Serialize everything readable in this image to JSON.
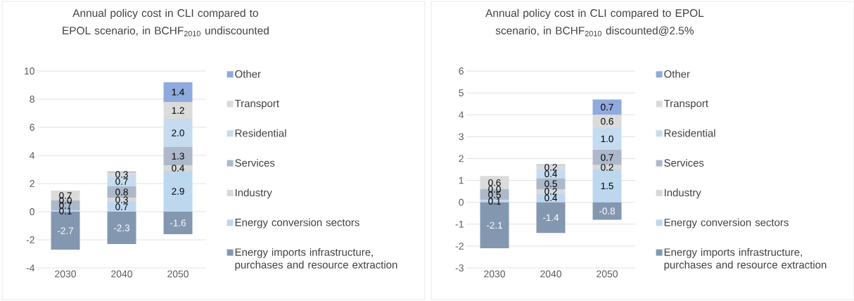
{
  "chart_data": [
    {
      "type": "bar",
      "stacked": true,
      "title": "Annual policy cost in CLI compared to EPOL scenario, in BCHF$_{2010}$ undiscounted",
      "categories": [
        "2030",
        "2040",
        "2050"
      ],
      "ylim": [
        -4,
        10
      ],
      "yticks": [
        -4,
        -2,
        0,
        2,
        4,
        6,
        8,
        10
      ],
      "grid": "y",
      "legend": "right",
      "series": [
        {
          "name": "Energy imports infrastructure, purchases and resource extraction",
          "color": "#8497b0",
          "values": [
            -2.7,
            -2.3,
            -1.6
          ],
          "value_labels": [
            "-2.7",
            "-2.3",
            "-1.6"
          ]
        },
        {
          "name": "Energy conversion sectors",
          "color": "#bdd7ee",
          "values": [
            0.1,
            0.7,
            2.9
          ],
          "value_labels": [
            "0.1",
            "0.7",
            "2.9"
          ]
        },
        {
          "name": "Industry",
          "color": "#d9d9d9",
          "values": [
            0.0,
            0.3,
            0.4
          ],
          "value_labels": [
            null,
            "0.3",
            "0.4"
          ]
        },
        {
          "name": "Services",
          "color": "#adb9ca",
          "values": [
            0.7,
            0.8,
            1.3
          ],
          "value_labels": [
            "0.7",
            "0.8",
            "1.3"
          ]
        },
        {
          "name": "Residential",
          "color": "#c5dcf0",
          "values": [
            0.0,
            0.7,
            2.0
          ],
          "value_labels": [
            "0.0",
            "0.7",
            "2.0"
          ]
        },
        {
          "name": "Transport",
          "color": "#dbdbdb",
          "values": [
            0.7,
            0.3,
            1.2
          ],
          "value_labels": [
            "0.7",
            "0.3",
            "1.2"
          ]
        },
        {
          "name": "Other",
          "color": "#8faadc",
          "values": [
            0.0,
            0.05,
            1.4
          ],
          "value_labels": [
            null,
            null,
            "1.4"
          ]
        }
      ]
    },
    {
      "type": "bar",
      "stacked": true,
      "title": "Annual policy cost in CLI compared to EPOL scenario, in BCHF$_{2010}$ discounted@2.5%",
      "categories": [
        "2030",
        "2040",
        "2050"
      ],
      "ylim": [
        -3,
        6
      ],
      "yticks": [
        -3,
        -2,
        -1,
        0,
        1,
        2,
        3,
        4,
        5,
        6
      ],
      "grid": "y",
      "legend": "right",
      "series": [
        {
          "name": "Energy imports infrastructure, purchases and resource extraction",
          "color": "#8497b0",
          "values": [
            -2.1,
            -1.4,
            -0.8
          ],
          "value_labels": [
            "-2.1",
            "-1.4",
            "-0.8"
          ]
        },
        {
          "name": "Energy conversion sectors",
          "color": "#bdd7ee",
          "values": [
            0.1,
            0.4,
            1.5
          ],
          "value_labels": [
            "0.1",
            "0.4",
            "1.5"
          ]
        },
        {
          "name": "Industry",
          "color": "#d9d9d9",
          "values": [
            0.0,
            0.2,
            0.2
          ],
          "value_labels": [
            null,
            "0.2",
            "0.2"
          ]
        },
        {
          "name": "Services",
          "color": "#adb9ca",
          "values": [
            0.5,
            0.5,
            0.7
          ],
          "value_labels": [
            "0.5",
            "0.5",
            "0.7"
          ]
        },
        {
          "name": "Residential",
          "color": "#c5dcf0",
          "values": [
            0.0,
            0.4,
            1.0
          ],
          "value_labels": [
            "0.0",
            "0.4",
            "1.0"
          ]
        },
        {
          "name": "Transport",
          "color": "#dbdbdb",
          "values": [
            0.6,
            0.2,
            0.6
          ],
          "value_labels": [
            "0.6",
            "0.2",
            "0.6"
          ]
        },
        {
          "name": "Other",
          "color": "#8faadc",
          "values": [
            0.0,
            0.03,
            0.7
          ],
          "value_labels": [
            null,
            null,
            "0.7"
          ]
        }
      ]
    }
  ]
}
